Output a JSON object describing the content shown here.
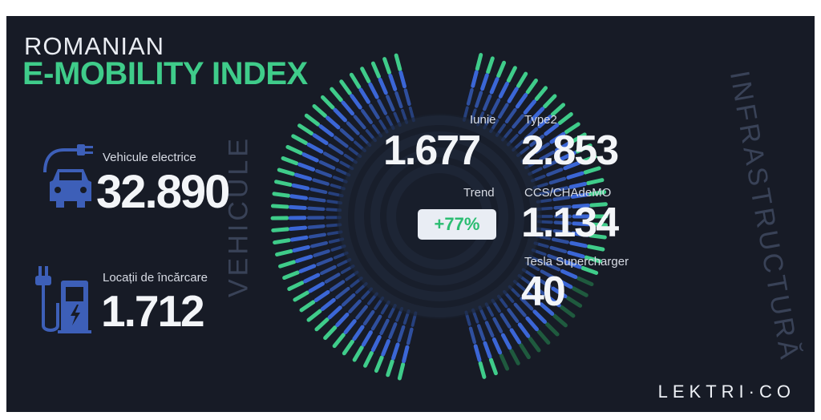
{
  "header": {
    "line1": "ROMANIAN",
    "line2": "E-MOBILITY INDEX"
  },
  "left": {
    "vehicles": {
      "label": "Vehicule electrice",
      "value": "32.890",
      "icon": "ev-car-plug-icon"
    },
    "locations": {
      "label": "Locații de încărcare",
      "value": "1.712",
      "icon": "charging-station-icon"
    }
  },
  "center": {
    "june_label": "Iunie",
    "june_value": "1.677",
    "trend_label": "Trend",
    "trend_value": "+77%"
  },
  "right": {
    "type2_label": "Type2",
    "type2_value": "2.853",
    "ccs_label": "CCS/CHAdeMO",
    "ccs_value": "1.134",
    "tesla_label": "Tesla Supercharger",
    "tesla_value": "40"
  },
  "side_words": {
    "left": "VEHICULE",
    "right": "INFRASTRUCTURĂ"
  },
  "brand": "LEKTRI·CO",
  "colors": {
    "background": "#171b26",
    "accent_green": "#3fcc8a",
    "accent_blue": "#3b66d6",
    "icon_blue": "#3d5fb8"
  }
}
